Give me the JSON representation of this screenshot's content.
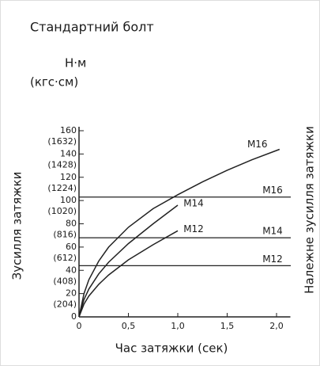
{
  "chart_data": {
    "type": "line",
    "title": "Стандартний болт",
    "y_unit": "Н·м",
    "y_unit2": "(кгс·см)",
    "ylabel": "Зусилля затяжки",
    "y2label": "Належне зусилля затяжки",
    "xlabel": "Час затяжки (сек)",
    "xlim": [
      0,
      2.1
    ],
    "ylim": [
      0,
      160
    ],
    "xticks": [
      0,
      {
        "value": 0.5,
        "label": "0,5"
      },
      {
        "value": 1.0,
        "label": "1,0"
      },
      {
        "value": 1.5,
        "label": "1,5"
      },
      {
        "value": 2.0,
        "label": "2,0"
      }
    ],
    "yticks": [
      0,
      20,
      40,
      60,
      80,
      100,
      120,
      140,
      160
    ],
    "yticks_kgfcm": [
      {
        "value": 20,
        "label": "(204)"
      },
      {
        "value": 40,
        "label": "(408)"
      },
      {
        "value": 60,
        "label": "(612)"
      },
      {
        "value": 80,
        "label": "(816)"
      },
      {
        "value": 100,
        "label": "(1020)"
      },
      {
        "value": 120,
        "label": "(1224)"
      },
      {
        "value": 140,
        "label": "(1428)"
      },
      {
        "value": 160,
        "label": "(1632)"
      }
    ],
    "series": [
      {
        "name": "M16",
        "color": "#222222",
        "x": [
          0,
          0.05,
          0.1,
          0.2,
          0.3,
          0.5,
          0.75,
          1.0,
          1.25,
          1.5,
          1.75,
          2.03
        ],
        "values": [
          0,
          20,
          32,
          48,
          60,
          77,
          93,
          105,
          116,
          126,
          135,
          144
        ]
      },
      {
        "name": "M14",
        "color": "#222222",
        "x": [
          0,
          0.05,
          0.1,
          0.2,
          0.3,
          0.5,
          0.75,
          1.0
        ],
        "values": [
          0,
          15,
          24,
          37,
          47,
          63,
          80,
          96
        ]
      },
      {
        "name": "M12",
        "color": "#222222",
        "x": [
          0,
          0.05,
          0.1,
          0.2,
          0.3,
          0.5,
          0.75,
          1.0
        ],
        "values": [
          0,
          11,
          18,
          28,
          36,
          49,
          62,
          74
        ]
      }
    ],
    "reference_lines": [
      {
        "name": "M16",
        "value": 103
      },
      {
        "name": "M14",
        "value": 68
      },
      {
        "name": "M12",
        "value": 44
      }
    ]
  }
}
